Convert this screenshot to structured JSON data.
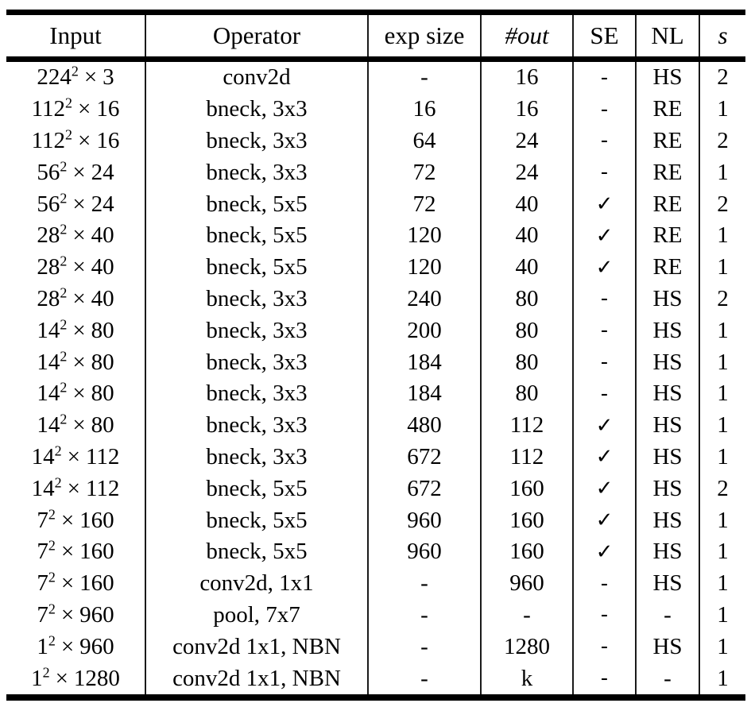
{
  "table": {
    "times_symbol": "×",
    "columns": [
      {
        "label": "Input"
      },
      {
        "label": "Operator"
      },
      {
        "label": "exp size"
      },
      {
        "label": "#out"
      },
      {
        "label": "SE"
      },
      {
        "label": "NL"
      },
      {
        "label": "s"
      }
    ],
    "rows": [
      {
        "input_base": "224",
        "input_exp": "2",
        "input_channels": "3",
        "operator": "conv2d",
        "exp_size": "-",
        "num_out": "16",
        "se": "-",
        "nl": "HS",
        "stride": "2"
      },
      {
        "input_base": "112",
        "input_exp": "2",
        "input_channels": "16",
        "operator": "bneck, 3x3",
        "exp_size": "16",
        "num_out": "16",
        "se": "-",
        "nl": "RE",
        "stride": "1"
      },
      {
        "input_base": "112",
        "input_exp": "2",
        "input_channels": "16",
        "operator": "bneck, 3x3",
        "exp_size": "64",
        "num_out": "24",
        "se": "-",
        "nl": "RE",
        "stride": "2"
      },
      {
        "input_base": "56",
        "input_exp": "2",
        "input_channels": "24",
        "operator": "bneck, 3x3",
        "exp_size": "72",
        "num_out": "24",
        "se": "-",
        "nl": "RE",
        "stride": "1"
      },
      {
        "input_base": "56",
        "input_exp": "2",
        "input_channels": "24",
        "operator": "bneck, 5x5",
        "exp_size": "72",
        "num_out": "40",
        "se": "✓",
        "nl": "RE",
        "stride": "2"
      },
      {
        "input_base": "28",
        "input_exp": "2",
        "input_channels": "40",
        "operator": "bneck, 5x5",
        "exp_size": "120",
        "num_out": "40",
        "se": "✓",
        "nl": "RE",
        "stride": "1"
      },
      {
        "input_base": "28",
        "input_exp": "2",
        "input_channels": "40",
        "operator": "bneck, 5x5",
        "exp_size": "120",
        "num_out": "40",
        "se": "✓",
        "nl": "RE",
        "stride": "1"
      },
      {
        "input_base": "28",
        "input_exp": "2",
        "input_channels": "40",
        "operator": "bneck, 3x3",
        "exp_size": "240",
        "num_out": "80",
        "se": "-",
        "nl": "HS",
        "stride": "2"
      },
      {
        "input_base": "14",
        "input_exp": "2",
        "input_channels": "80",
        "operator": "bneck, 3x3",
        "exp_size": "200",
        "num_out": "80",
        "se": "-",
        "nl": "HS",
        "stride": "1"
      },
      {
        "input_base": "14",
        "input_exp": "2",
        "input_channels": "80",
        "operator": "bneck, 3x3",
        "exp_size": "184",
        "num_out": "80",
        "se": "-",
        "nl": "HS",
        "stride": "1"
      },
      {
        "input_base": "14",
        "input_exp": "2",
        "input_channels": "80",
        "operator": "bneck, 3x3",
        "exp_size": "184",
        "num_out": "80",
        "se": "-",
        "nl": "HS",
        "stride": "1"
      },
      {
        "input_base": "14",
        "input_exp": "2",
        "input_channels": "80",
        "operator": "bneck, 3x3",
        "exp_size": "480",
        "num_out": "112",
        "se": "✓",
        "nl": "HS",
        "stride": "1"
      },
      {
        "input_base": "14",
        "input_exp": "2",
        "input_channels": "112",
        "operator": "bneck, 3x3",
        "exp_size": "672",
        "num_out": "112",
        "se": "✓",
        "nl": "HS",
        "stride": "1"
      },
      {
        "input_base": "14",
        "input_exp": "2",
        "input_channels": "112",
        "operator": "bneck, 5x5",
        "exp_size": "672",
        "num_out": "160",
        "se": "✓",
        "nl": "HS",
        "stride": "2"
      },
      {
        "input_base": "7",
        "input_exp": "2",
        "input_channels": "160",
        "operator": "bneck, 5x5",
        "exp_size": "960",
        "num_out": "160",
        "se": "✓",
        "nl": "HS",
        "stride": "1"
      },
      {
        "input_base": "7",
        "input_exp": "2",
        "input_channels": "160",
        "operator": "bneck, 5x5",
        "exp_size": "960",
        "num_out": "160",
        "se": "✓",
        "nl": "HS",
        "stride": "1"
      },
      {
        "input_base": "7",
        "input_exp": "2",
        "input_channels": "160",
        "operator": "conv2d, 1x1",
        "exp_size": "-",
        "num_out": "960",
        "se": "-",
        "nl": "HS",
        "stride": "1"
      },
      {
        "input_base": "7",
        "input_exp": "2",
        "input_channels": "960",
        "operator": "pool, 7x7",
        "exp_size": "-",
        "num_out": "-",
        "se": "-",
        "nl": "-",
        "stride": "1"
      },
      {
        "input_base": "1",
        "input_exp": "2",
        "input_channels": "960",
        "operator": "conv2d 1x1, NBN",
        "exp_size": "-",
        "num_out": "1280",
        "se": "-",
        "nl": "HS",
        "stride": "1"
      },
      {
        "input_base": "1",
        "input_exp": "2",
        "input_channels": "1280",
        "operator": "conv2d 1x1, NBN",
        "exp_size": "-",
        "num_out": "k",
        "se": "-",
        "nl": "-",
        "stride": "1"
      }
    ]
  }
}
